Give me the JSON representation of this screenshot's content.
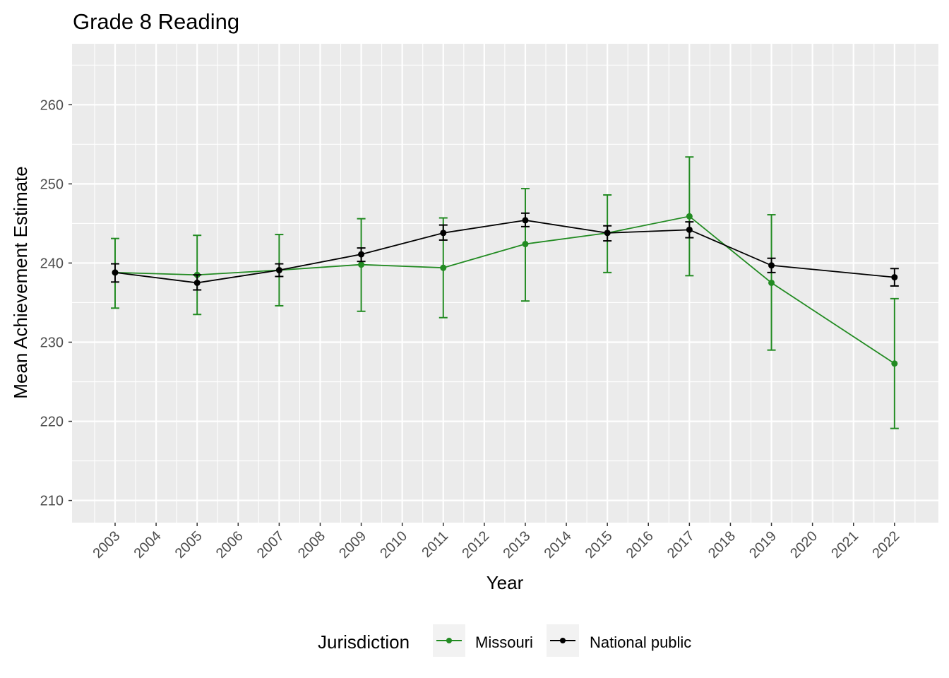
{
  "chart_data": {
    "type": "line",
    "title": "Grade 8 Reading",
    "xlabel": "Year",
    "ylabel": "Mean Achievement Estimate",
    "x_ticks": [
      2003,
      2004,
      2005,
      2006,
      2007,
      2008,
      2009,
      2010,
      2011,
      2012,
      2013,
      2014,
      2015,
      2016,
      2017,
      2018,
      2019,
      2020,
      2021,
      2022
    ],
    "y_ticks": [
      210,
      220,
      230,
      240,
      250,
      260
    ],
    "xlim": [
      2001.95,
      2023.07
    ],
    "ylim": [
      207.2,
      267.7
    ],
    "grid": true,
    "legend": {
      "title": "Jurisdiction",
      "placement": "bottom"
    },
    "x": [
      2003,
      2005,
      2007,
      2009,
      2011,
      2013,
      2015,
      2017,
      2019,
      2022
    ],
    "series": [
      {
        "name": "Missouri",
        "color": "#228B22",
        "values": [
          238.8,
          238.5,
          239.1,
          239.8,
          239.4,
          242.4,
          243.8,
          245.9,
          237.5,
          227.3
        ],
        "lower": [
          234.3,
          233.5,
          234.6,
          233.9,
          233.1,
          235.2,
          238.8,
          238.4,
          229.0,
          219.1
        ],
        "upper": [
          243.1,
          243.5,
          243.6,
          245.6,
          245.7,
          249.4,
          248.6,
          253.4,
          246.1,
          235.5
        ]
      },
      {
        "name": "National public",
        "color": "#000000",
        "values": [
          238.8,
          237.5,
          239.1,
          241.1,
          243.8,
          245.4,
          243.8,
          244.2,
          239.7,
          238.2
        ],
        "lower": [
          237.6,
          236.6,
          238.3,
          240.2,
          242.9,
          244.6,
          242.8,
          243.2,
          238.8,
          237.1
        ],
        "upper": [
          239.9,
          238.5,
          239.9,
          241.9,
          244.8,
          246.3,
          244.7,
          245.2,
          240.6,
          239.3
        ]
      }
    ]
  }
}
